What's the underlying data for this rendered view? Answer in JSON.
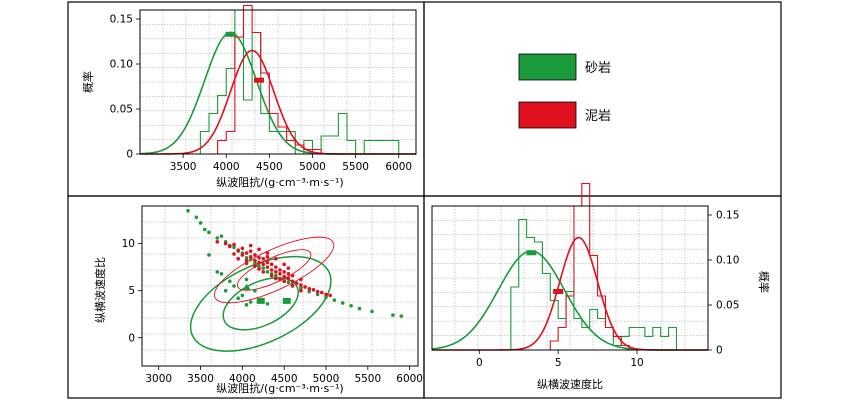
{
  "colors": {
    "sandstone": "#1a9a3a",
    "mudstone": "#e0101e",
    "frame": "#000000",
    "grid": "#9a9a9a"
  },
  "legend": {
    "sandstone_label": "砂岩",
    "mudstone_label": "泥岩"
  },
  "chart_data": [
    {
      "type": "histogram",
      "xlabel": "纵波阻抗/(g·cm⁻³·m·s⁻¹)",
      "ylabel": "概率",
      "xlim": [
        3000,
        6200
      ],
      "ylim": [
        0,
        0.16
      ],
      "xticks": [
        3500,
        4000,
        4500,
        5000,
        5500,
        6000
      ],
      "yticks": [
        0,
        0.05,
        0.1,
        0.15
      ],
      "ytick_labels": [
        "0",
        "0.05",
        "0.10",
        "0.15"
      ],
      "grid": true,
      "series": [
        {
          "name": "砂岩",
          "bin_edges": [
            3700,
            3800,
            3900,
            4000,
            4100,
            4200,
            4300,
            4400,
            4500,
            4600,
            4700,
            4800,
            4900,
            5000,
            5100,
            5200,
            5300,
            5400,
            5500,
            5600,
            5700,
            5800,
            5900,
            6000
          ],
          "prob": [
            0.025,
            0.045,
            0.065,
            0.095,
            0.16,
            0.06,
            0.135,
            0.045,
            0.025,
            0.025,
            0.025,
            0,
            0.015,
            0,
            0.02,
            0.02,
            0.045,
            0.015,
            0,
            0.015,
            0.015,
            0.015,
            0.015
          ],
          "fit": {
            "mean": 4050,
            "std": 300,
            "peak": 0.135
          },
          "marker": {
            "x": 4050,
            "y": 0.133
          }
        },
        {
          "name": "泥岩",
          "bin_edges": [
            3900,
            4000,
            4100,
            4200,
            4300,
            4400,
            4500,
            4600,
            4700,
            4800,
            4900,
            5000,
            5100
          ],
          "prob": [
            0.015,
            0.025,
            0.13,
            0.165,
            0.135,
            0.09,
            0.045,
            0.03,
            0.015,
            0.01,
            0.005,
            0.005
          ],
          "fit": {
            "mean": 4300,
            "std": 250,
            "peak": 0.115
          },
          "marker": {
            "x": 4380,
            "y": 0.082
          }
        }
      ]
    },
    {
      "type": "scatter",
      "xlabel": "纵波阻抗/(g·cm⁻³·m·s⁻¹)",
      "ylabel": "纵横波速度比",
      "xlim": [
        2800,
        6100
      ],
      "ylim": [
        -3,
        14
      ],
      "xticks": [
        3000,
        3500,
        4000,
        4500,
        5000,
        5500,
        6000
      ],
      "yticks": [
        0,
        5,
        10
      ],
      "grid": true,
      "series": [
        {
          "name": "砂岩",
          "points": [
            [
              3350,
              13.5
            ],
            [
              3450,
              12.8
            ],
            [
              3500,
              12.2
            ],
            [
              3550,
              11.5
            ],
            [
              3600,
              11.2
            ],
            [
              3700,
              10.6
            ],
            [
              3750,
              10.8
            ],
            [
              3800,
              10.2
            ],
            [
              3850,
              9.8
            ],
            [
              3900,
              9.6
            ],
            [
              3950,
              9.2
            ],
            [
              4000,
              9.0
            ],
            [
              4050,
              8.5
            ],
            [
              4100,
              8.3
            ],
            [
              4150,
              7.9
            ],
            [
              4200,
              7.6
            ],
            [
              4250,
              7.4
            ],
            [
              4300,
              7.0
            ],
            [
              4350,
              6.8
            ],
            [
              4400,
              6.6
            ],
            [
              4450,
              6.3
            ],
            [
              4500,
              6.0
            ],
            [
              4550,
              5.9
            ],
            [
              4600,
              5.6
            ],
            [
              4700,
              5.3
            ],
            [
              4800,
              4.9
            ],
            [
              4900,
              4.6
            ],
            [
              5000,
              4.3
            ],
            [
              5100,
              4.0
            ],
            [
              5200,
              3.7
            ],
            [
              5300,
              3.4
            ],
            [
              5400,
              3.1
            ],
            [
              5550,
              2.8
            ],
            [
              5800,
              2.4
            ],
            [
              5900,
              2.3
            ],
            [
              3800,
              5.0
            ],
            [
              3900,
              5.5
            ],
            [
              3950,
              4.2
            ],
            [
              4000,
              4.5
            ],
            [
              4050,
              3.5
            ],
            [
              4100,
              3.8
            ],
            [
              4200,
              4.0
            ],
            [
              4300,
              3.6
            ],
            [
              3850,
              6.0
            ],
            [
              4150,
              5.0
            ],
            [
              3700,
              7.0
            ],
            [
              3600,
              8.8
            ],
            [
              3750,
              6.8
            ],
            [
              4050,
              6.2
            ]
          ],
          "ellipse_mean": [
            4220,
            3.6
          ],
          "ellipses": [
            {
              "rx": 480,
              "ry": 2.3,
              "angle": -25
            },
            {
              "rx": 900,
              "ry": 4.1,
              "angle": -25
            }
          ]
        },
        {
          "name": "泥岩",
          "points": [
            [
              3700,
              10.2
            ],
            [
              3800,
              10.0
            ],
            [
              3850,
              9.7
            ],
            [
              3900,
              9.9
            ],
            [
              3950,
              9.3
            ],
            [
              4000,
              9.5
            ],
            [
              4000,
              8.8
            ],
            [
              4050,
              9.0
            ],
            [
              4100,
              8.6
            ],
            [
              4100,
              9.2
            ],
            [
              4150,
              8.2
            ],
            [
              4150,
              8.8
            ],
            [
              4200,
              8.0
            ],
            [
              4200,
              8.5
            ],
            [
              4250,
              7.8
            ],
            [
              4250,
              8.4
            ],
            [
              4300,
              7.5
            ],
            [
              4300,
              8.0
            ],
            [
              4350,
              7.2
            ],
            [
              4350,
              7.8
            ],
            [
              4400,
              7.0
            ],
            [
              4400,
              7.5
            ],
            [
              4450,
              6.8
            ],
            [
              4450,
              7.2
            ],
            [
              4500,
              6.5
            ],
            [
              4500,
              7.0
            ],
            [
              4550,
              6.3
            ],
            [
              4550,
              6.8
            ],
            [
              4600,
              6.0
            ],
            [
              4600,
              6.6
            ],
            [
              4650,
              5.8
            ],
            [
              4700,
              5.6
            ],
            [
              4700,
              6.2
            ],
            [
              4750,
              5.4
            ],
            [
              4800,
              5.2
            ],
            [
              4850,
              5.1
            ],
            [
              4900,
              4.9
            ],
            [
              4950,
              4.8
            ],
            [
              5000,
              4.6
            ],
            [
              5050,
              4.5
            ],
            [
              4050,
              7.9
            ],
            [
              4150,
              7.6
            ],
            [
              4250,
              7.0
            ],
            [
              4350,
              6.6
            ],
            [
              4450,
              6.2
            ],
            [
              4100,
              9.8
            ],
            [
              4200,
              9.4
            ],
            [
              4300,
              9.0
            ],
            [
              4400,
              8.4
            ],
            [
              4500,
              7.8
            ],
            [
              3950,
              8.4
            ],
            [
              4050,
              8.2
            ],
            [
              4200,
              7.3
            ],
            [
              4600,
              5.5
            ],
            [
              4500,
              6.0
            ],
            [
              4700,
              5.0
            ],
            [
              3900,
              8.9
            ],
            [
              4300,
              8.6
            ],
            [
              4400,
              6.3
            ],
            [
              4550,
              7.4
            ]
          ],
          "ellipse_mean": [
            4380,
            7.2
          ],
          "ellipses": [
            {
              "rx": 480,
              "ry": 1.3,
              "angle": -25
            },
            {
              "rx": 780,
              "ry": 2.1,
              "angle": -25
            }
          ]
        }
      ]
    },
    {
      "type": "histogram",
      "xlabel": "纵横波速度比",
      "ylabel": "概率",
      "xlim": [
        -3,
        14.5
      ],
      "ylim": [
        0,
        0.16
      ],
      "xticks": [
        0,
        5,
        10
      ],
      "yticks": [
        0,
        0.05,
        0.1,
        0.15
      ],
      "ytick_labels": [
        "0",
        "0.05",
        "0.10",
        "0.15"
      ],
      "yaxis_side": "right",
      "grid": true,
      "series": [
        {
          "name": "砂岩",
          "bin_edges": [
            2,
            2.5,
            3,
            3.5,
            4,
            4.5,
            5,
            5.5,
            6,
            6.5,
            7,
            7.5,
            8,
            8.5,
            9,
            9.5,
            10,
            10.5,
            11,
            11.5,
            12,
            12.5
          ],
          "prob": [
            0.07,
            0.145,
            0.125,
            0.12,
            0.085,
            0.055,
            0.035,
            0.065,
            0.035,
            0.025,
            0.045,
            0.035,
            0.025,
            0.005,
            0.015,
            0.025,
            0.025,
            0.015,
            0.025,
            0.015,
            0.025
          ],
          "fit": {
            "mean": 3.3,
            "std": 2.1,
            "peak": 0.11
          },
          "marker": {
            "x": 3.3,
            "y": 0.108
          }
        },
        {
          "name": "泥岩",
          "bin_edges": [
            4.5,
            5,
            5.5,
            6,
            6.5,
            7,
            7.5,
            8,
            8.5,
            9,
            9.5
          ],
          "prob": [
            0.01,
            0.025,
            0.06,
            0.16,
            0.185,
            0.105,
            0.06,
            0.025,
            0.015,
            0.005
          ],
          "fit": {
            "mean": 6.3,
            "std": 1.2,
            "peak": 0.125
          },
          "marker": {
            "x": 5.0,
            "y": 0.065
          }
        }
      ]
    }
  ]
}
